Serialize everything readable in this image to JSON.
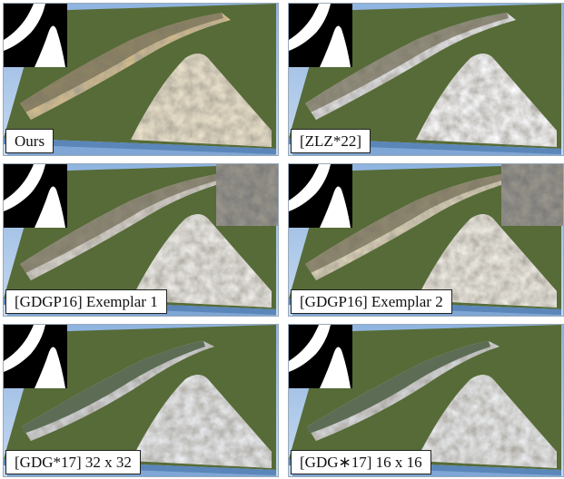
{
  "panels": [
    {
      "caption": "Ours"
    },
    {
      "caption": "[ZLZ*22]"
    },
    {
      "caption": "[GDGP16] Exemplar 1"
    },
    {
      "caption": "[GDGP16] Exemplar 2"
    },
    {
      "caption": "[GDG*17] 32 x 32"
    },
    {
      "caption": "[GDG∗17] 16 x 16"
    }
  ]
}
